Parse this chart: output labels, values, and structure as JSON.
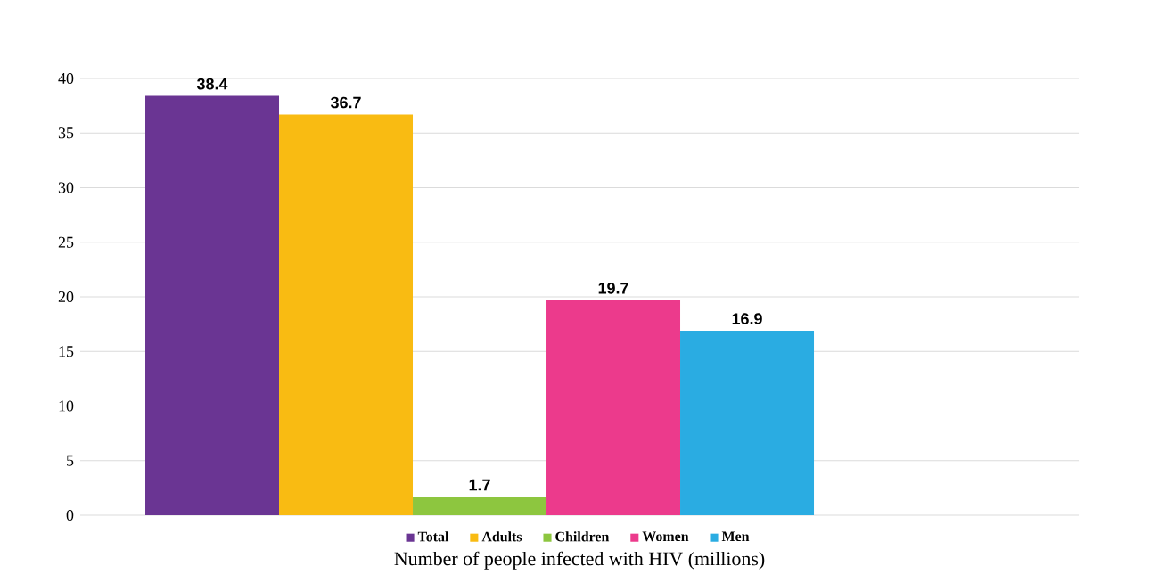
{
  "chart_data": {
    "type": "bar",
    "xlabel": "Number of people infected with HIV (millions)",
    "categories": [
      null
    ],
    "series": [
      {
        "name": "Total",
        "color": "#6a3593",
        "values": [
          38.4
        ]
      },
      {
        "name": "Adults",
        "color": "#f9bb12",
        "values": [
          36.7
        ]
      },
      {
        "name": "Children",
        "color": "#8dc63f",
        "values": [
          1.7
        ]
      },
      {
        "name": "Women",
        "color": "#ec3a8c",
        "values": [
          19.7
        ]
      },
      {
        "name": "Men",
        "color": "#2aace2",
        "values": [
          16.9
        ]
      }
    ],
    "ylim": [
      0,
      40
    ],
    "yticks": [
      0,
      5,
      10,
      15,
      20,
      25,
      30,
      35,
      40
    ],
    "grid": "y",
    "legend": "bottom",
    "data_labels": true
  }
}
